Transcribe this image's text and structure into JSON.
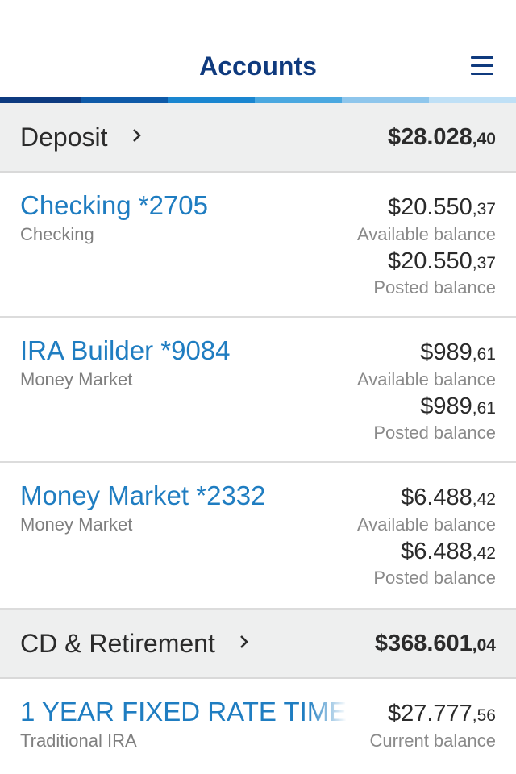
{
  "header": {
    "title": "Accounts",
    "menu_icon": "hamburger-menu-icon"
  },
  "brand_colors": {
    "title": "#0f3a7e",
    "link": "#1f7dc1",
    "stripe": [
      "#0d3a80",
      "#0e5aa8",
      "#1a86d0",
      "#4aa8e0",
      "#8ec6ec",
      "#bfe0f6"
    ]
  },
  "deposit": {
    "name": "Deposit",
    "total_whole": "$28.028",
    "total_cents": ",40",
    "accounts": [
      {
        "name": "Checking *2705",
        "type": "Checking",
        "available_whole": "$20.550",
        "available_cents": ",37",
        "available_label": "Available balance",
        "posted_whole": "$20.550",
        "posted_cents": ",37",
        "posted_label": "Posted balance"
      },
      {
        "name": "IRA Builder *9084",
        "type": "Money Market",
        "available_whole": "$989",
        "available_cents": ",61",
        "available_label": "Available balance",
        "posted_whole": "$989",
        "posted_cents": ",61",
        "posted_label": "Posted balance"
      },
      {
        "name": "Money Market *2332",
        "type": "Money Market",
        "available_whole": "$6.488",
        "available_cents": ",42",
        "available_label": "Available balance",
        "posted_whole": "$6.488",
        "posted_cents": ",42",
        "posted_label": "Posted balance"
      }
    ]
  },
  "retirement": {
    "name": "CD & Retirement",
    "total_whole": "$368.601",
    "total_cents": ",04",
    "accounts": [
      {
        "name": "1 YEAR FIXED RATE TIME",
        "type": "Traditional IRA",
        "current_whole": "$27.777",
        "current_cents": ",56",
        "current_label": "Current balance"
      }
    ]
  }
}
